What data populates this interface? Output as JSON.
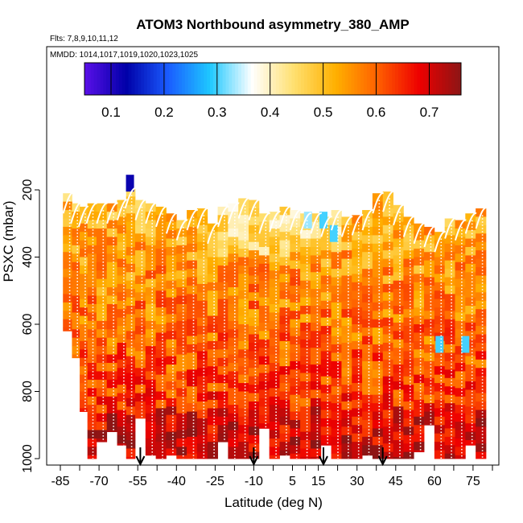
{
  "chart_data": {
    "type": "heatmap",
    "title": "ATOM3 Northbound asymmetry_380_AMP",
    "flights_label": "Flts: 7,8,9,10,11,12",
    "dates_label": "MMDD: 1014,1017,1019,1020,1023,1025",
    "xlabel": "Latitude (deg N)",
    "ylabel": "PSXC (mbar)",
    "xlim": [
      -85,
      85
    ],
    "ylim": [
      1000,
      0
    ],
    "x_ticks": [
      -85,
      -70,
      -55,
      -40,
      -25,
      -10,
      5,
      15,
      30,
      45,
      60,
      75
    ],
    "y_ticks": [
      200,
      400,
      600,
      800,
      1000
    ],
    "colorbar": {
      "range": [
        0.05,
        0.76
      ],
      "ticks": [
        0.1,
        0.2,
        0.3,
        0.4,
        0.5,
        0.6,
        0.7
      ],
      "colors": [
        "#5a10e8",
        "#0000a8",
        "#1a5cff",
        "#1ec8ff",
        "#ffffff",
        "#ffe070",
        "#ffb000",
        "#ff6000",
        "#ee0000",
        "#8c1515"
      ]
    },
    "profiles": [
      {
        "lat": -82,
        "p_top": 210,
        "p_bottom": 620
      },
      {
        "lat": -79,
        "p_top": 240,
        "p_bottom": 700
      },
      {
        "lat": -76,
        "p_top": 250,
        "p_bottom": 860
      },
      {
        "lat": -73,
        "p_top": 240,
        "p_bottom": 1000
      },
      {
        "lat": -69,
        "p_top": 240,
        "p_bottom": 950
      },
      {
        "lat": -65,
        "p_top": 240,
        "p_bottom": 920
      },
      {
        "lat": -61,
        "p_top": 230,
        "p_bottom": 960
      },
      {
        "lat": -58,
        "p_top": 195,
        "p_bottom": 1000
      },
      {
        "lat": -54,
        "p_top": 230,
        "p_bottom": 880
      },
      {
        "lat": -50,
        "p_top": 240,
        "p_bottom": 990
      },
      {
        "lat": -46,
        "p_top": 250,
        "p_bottom": 1000
      },
      {
        "lat": -42,
        "p_top": 270,
        "p_bottom": 990
      },
      {
        "lat": -38,
        "p_top": 290,
        "p_bottom": 1000
      },
      {
        "lat": -34,
        "p_top": 260,
        "p_bottom": 1000
      },
      {
        "lat": -30,
        "p_top": 255,
        "p_bottom": 1000
      },
      {
        "lat": -26,
        "p_top": 300,
        "p_bottom": 1000
      },
      {
        "lat": -22,
        "p_top": 250,
        "p_bottom": 950
      },
      {
        "lat": -18,
        "p_top": 240,
        "p_bottom": 1000
      },
      {
        "lat": -14,
        "p_top": 225,
        "p_bottom": 1000
      },
      {
        "lat": -10,
        "p_top": 230,
        "p_bottom": 1000
      },
      {
        "lat": -6,
        "p_top": 270,
        "p_bottom": 910
      },
      {
        "lat": -2,
        "p_top": 265,
        "p_bottom": 1000
      },
      {
        "lat": 2,
        "p_top": 250,
        "p_bottom": 990
      },
      {
        "lat": 6,
        "p_top": 260,
        "p_bottom": 1000
      },
      {
        "lat": 10,
        "p_top": 270,
        "p_bottom": 1000
      },
      {
        "lat": 14,
        "p_top": 270,
        "p_bottom": 1000
      },
      {
        "lat": 18,
        "p_top": 280,
        "p_bottom": 960
      },
      {
        "lat": 22,
        "p_top": 260,
        "p_bottom": 1000
      },
      {
        "lat": 26,
        "p_top": 280,
        "p_bottom": 1000
      },
      {
        "lat": 30,
        "p_top": 275,
        "p_bottom": 1000
      },
      {
        "lat": 34,
        "p_top": 260,
        "p_bottom": 990
      },
      {
        "lat": 38,
        "p_top": 210,
        "p_bottom": 1000
      },
      {
        "lat": 42,
        "p_top": 205,
        "p_bottom": 1000
      },
      {
        "lat": 46,
        "p_top": 245,
        "p_bottom": 1000
      },
      {
        "lat": 50,
        "p_top": 280,
        "p_bottom": 1000
      },
      {
        "lat": 54,
        "p_top": 300,
        "p_bottom": 980
      },
      {
        "lat": 58,
        "p_top": 310,
        "p_bottom": 900
      },
      {
        "lat": 62,
        "p_top": 325,
        "p_bottom": 1000
      },
      {
        "lat": 66,
        "p_top": 285,
        "p_bottom": 1000
      },
      {
        "lat": 70,
        "p_top": 290,
        "p_bottom": 1000
      },
      {
        "lat": 74,
        "p_top": 270,
        "p_bottom": 960
      },
      {
        "lat": 78,
        "p_top": 255,
        "p_bottom": 1000
      }
    ],
    "anomalies": [
      {
        "lat": -58,
        "p": 180,
        "value": 0.12
      },
      {
        "lat": 11,
        "p": 290,
        "value": 0.33
      },
      {
        "lat": 17,
        "p": 290,
        "value": 0.3
      },
      {
        "lat": 21,
        "p": 330,
        "value": 0.3
      },
      {
        "lat": 62,
        "p": 660,
        "value": 0.3
      },
      {
        "lat": 72,
        "p": 660,
        "value": 0.3
      }
    ],
    "flight_markers": [
      -54,
      -10,
      17,
      40
    ]
  }
}
